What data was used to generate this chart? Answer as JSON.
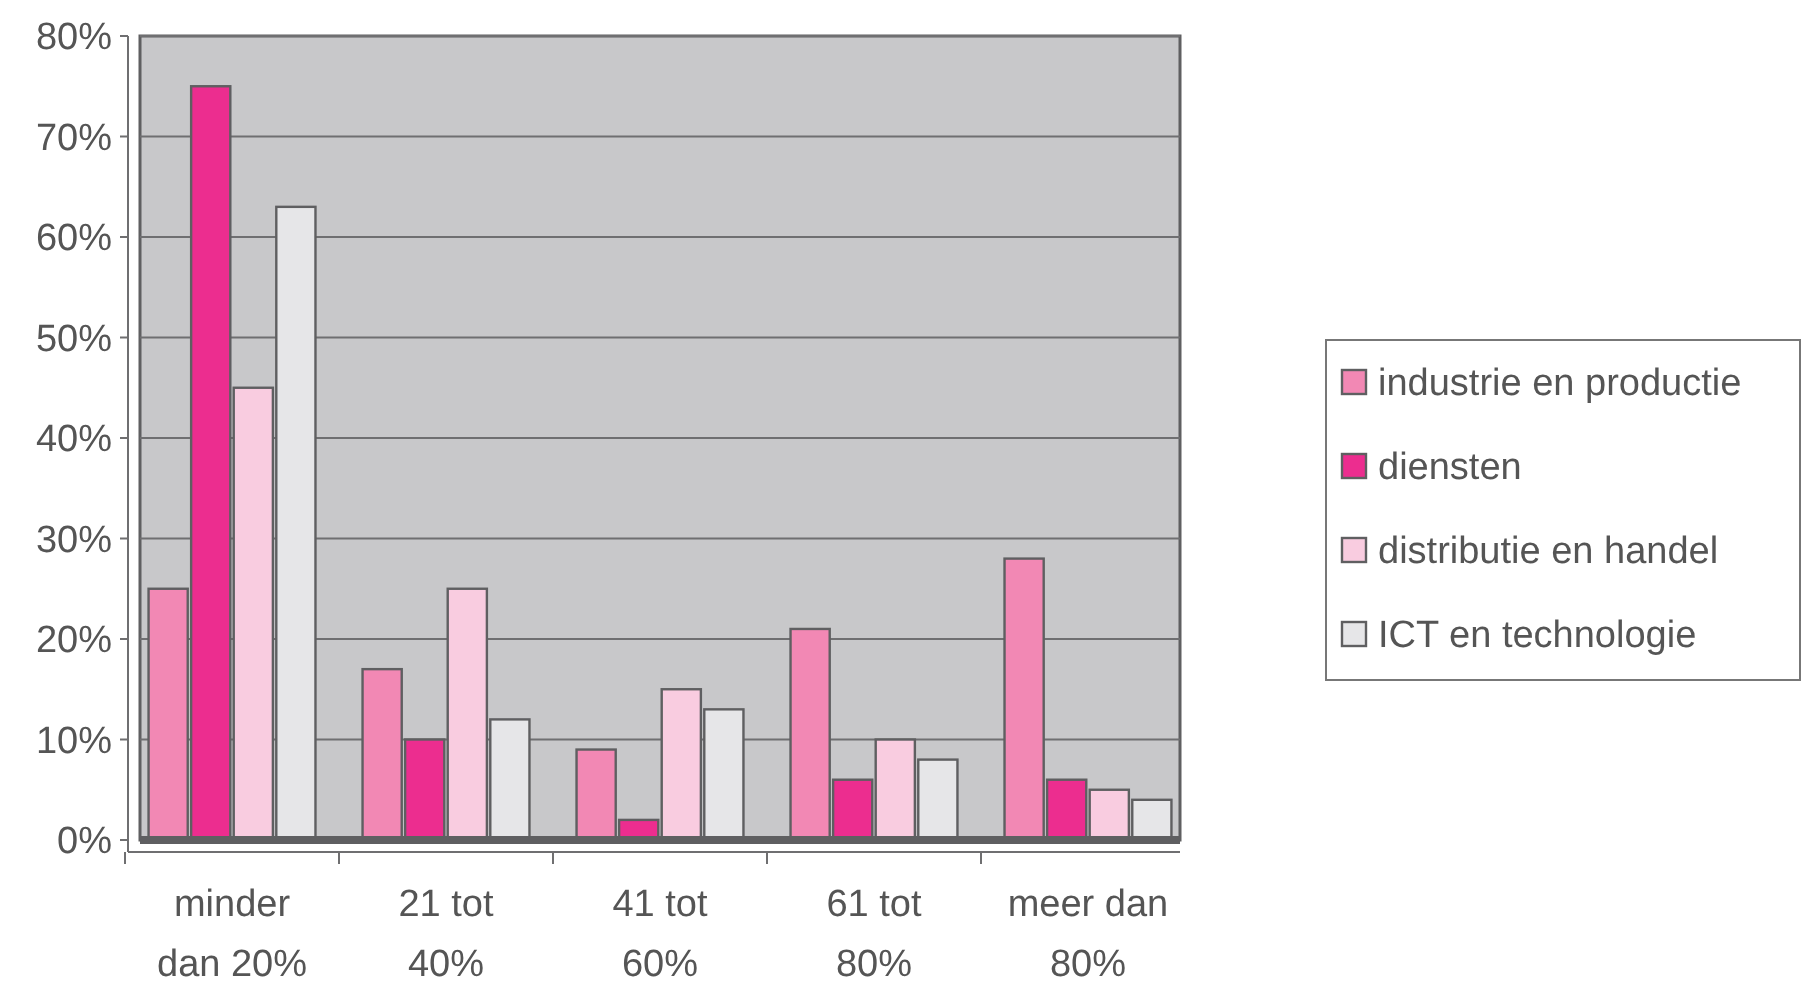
{
  "chart_data": {
    "type": "bar",
    "categories": [
      "minder dan 20%",
      "21 tot 40%",
      "41 tot 60%",
      "61 tot 80%",
      "meer dan 80%"
    ],
    "series": [
      {
        "name": "industrie en productie",
        "color": "#f288b4",
        "values": [
          25,
          17,
          9,
          21,
          28
        ]
      },
      {
        "name": "diensten",
        "color": "#ec2d8f",
        "values": [
          75,
          10,
          2,
          6,
          6
        ]
      },
      {
        "name": "distributie en handel",
        "color": "#f9cce0",
        "values": [
          45,
          25,
          15,
          10,
          5
        ]
      },
      {
        "name": "ICT en technologie",
        "color": "#e6e6e8",
        "values": [
          63,
          12,
          13,
          8,
          4
        ]
      }
    ],
    "ylim": [
      0,
      80
    ],
    "yticks": [
      {
        "value": 0,
        "label": "0%"
      },
      {
        "value": 10,
        "label": "10%"
      },
      {
        "value": 20,
        "label": "20%"
      },
      {
        "value": 30,
        "label": "30%"
      },
      {
        "value": 40,
        "label": "40%"
      },
      {
        "value": 50,
        "label": "50%"
      },
      {
        "value": 60,
        "label": "60%"
      },
      {
        "value": 70,
        "label": "70%"
      },
      {
        "value": 80,
        "label": "80%"
      }
    ],
    "grid": "y",
    "legend": "right"
  }
}
